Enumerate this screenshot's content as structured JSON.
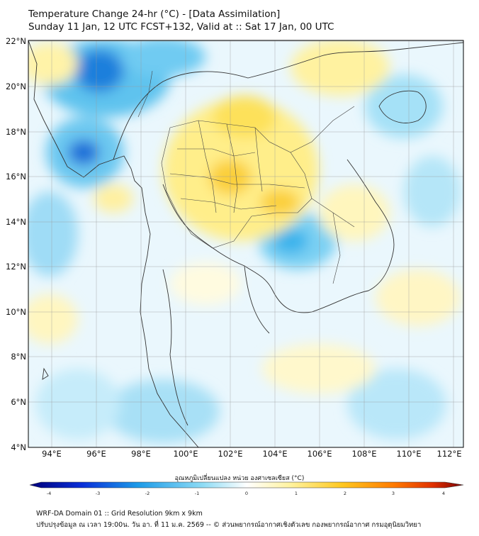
{
  "header": {
    "title_line1": "Temperature Change 24-hr (°C) - [Data Assimilation]",
    "title_line2": "Sunday 11 Jan, 12 UTC FCST+132, Valid at :: Sat 17 Jan, 00 UTC"
  },
  "map": {
    "lat_labels": [
      "22°N",
      "20°N",
      "18°N",
      "16°N",
      "14°N",
      "12°N",
      "10°N",
      "8°N",
      "6°N",
      "4°N"
    ],
    "lon_labels": [
      "94°E",
      "96°E",
      "98°E",
      "100°E",
      "102°E",
      "104°E",
      "106°E",
      "108°E",
      "110°E",
      "112°E"
    ],
    "lat_range": [
      4,
      22
    ],
    "lon_range": [
      93,
      112.5
    ]
  },
  "colorbar": {
    "label": "อุณหภูมิเปลี่ยนแปลง หน่วย องศาเซลเซียส (°C)",
    "ticks": [
      "-4",
      "-3",
      "-2",
      "-1",
      "0",
      "1",
      "2",
      "3",
      "4"
    ],
    "range": [
      -4,
      4
    ],
    "colors": [
      "#00007a",
      "#0a2fd8",
      "#1d9be8",
      "#8fdcf5",
      "#ffffff",
      "#fff3a0",
      "#ffc820",
      "#ff7a00",
      "#e03000",
      "#7a0000"
    ]
  },
  "footer": {
    "line1": "WRF-DA Domain 01 :: Grid Resolution 9km x 9km",
    "line2": "ปรับปรุงข้อมูล ณ เวลา 19:00น. วัน อา. ที่ 11 ม.ค. 2569 -- © ส่วนพยากรณ์อากาศเชิงตัวเลข กองพยากรณ์อากาศ กรมอุตุนิยมวิทยา"
  }
}
